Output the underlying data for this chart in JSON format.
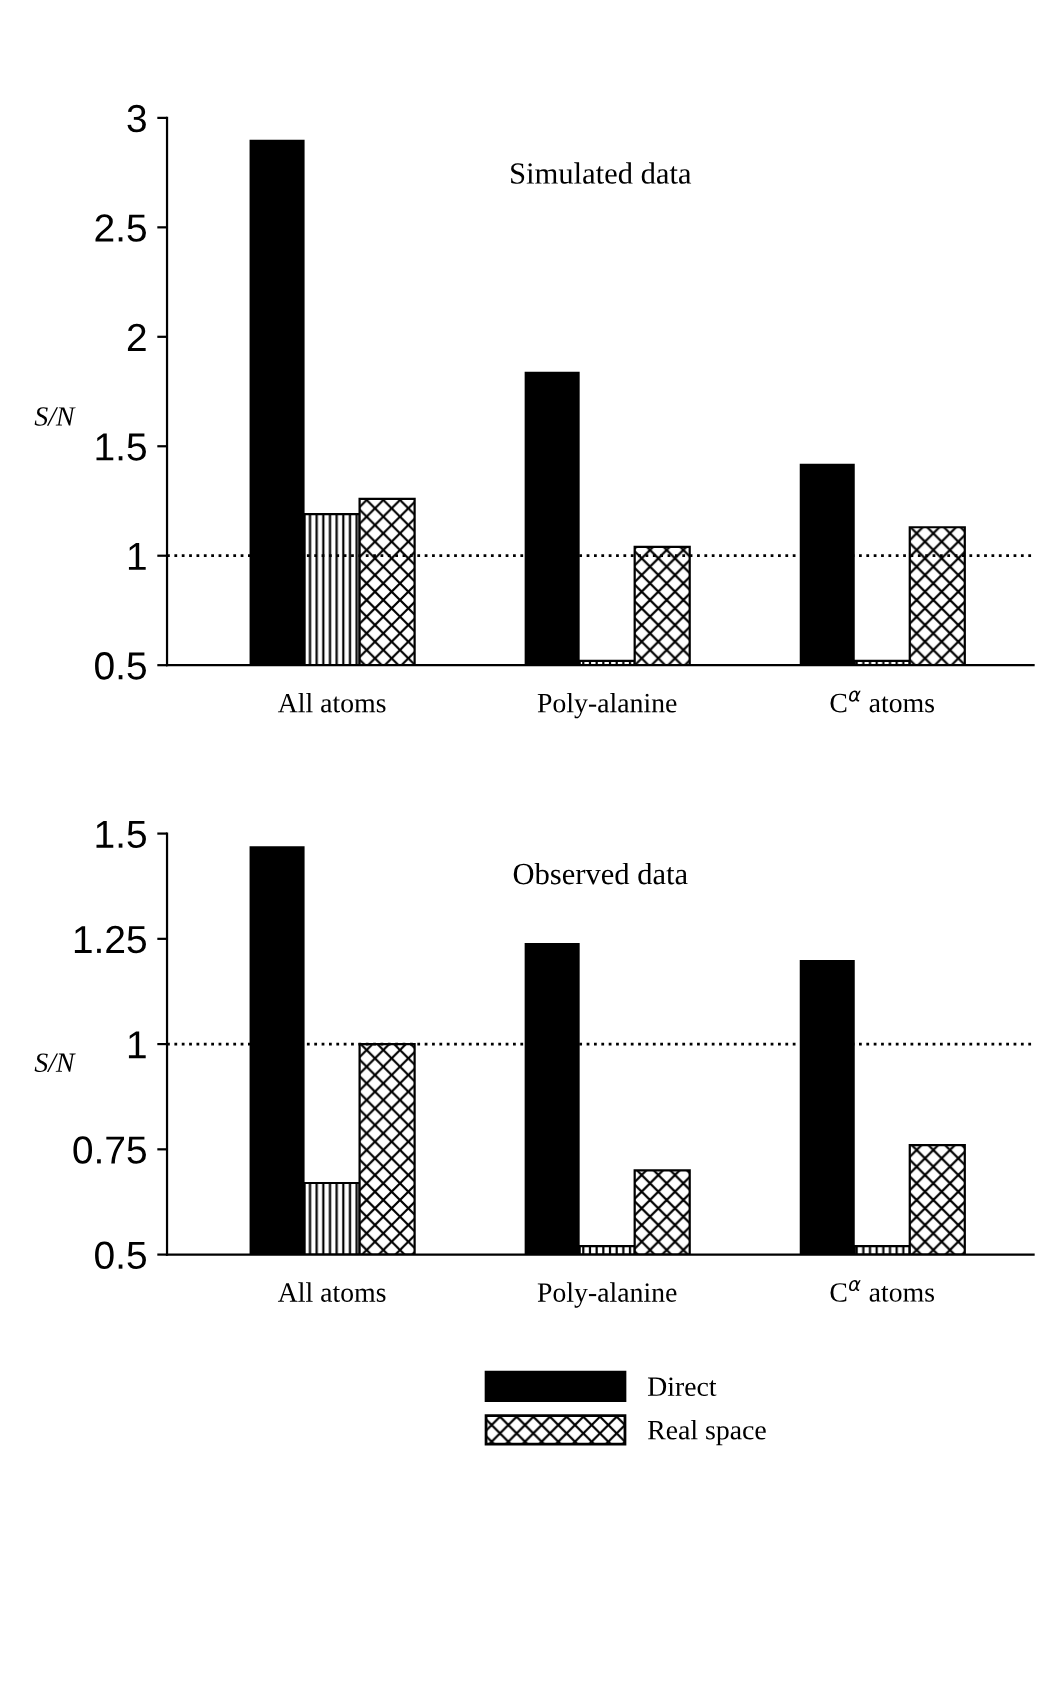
{
  "chart_data": [
    {
      "type": "bar",
      "title": "Simulated data",
      "ylabel": "S/N",
      "categories": [
        "All atoms",
        "Poly-alanine",
        "C$^{α}$ atoms"
      ],
      "series": [
        {
          "name": "Direct",
          "color": "#000000",
          "values": [
            2.9,
            1.84,
            1.42
          ]
        },
        {
          "color": "#000000",
          "values": [
            1.19,
            0.52,
            0.52
          ]
        },
        {
          "name": "Real space",
          "color": "#000000",
          "values": [
            1.26,
            1.04,
            1.13
          ]
        }
      ],
      "ylim": [
        0.5,
        3
      ],
      "yticks": [
        0.5,
        1,
        1.5,
        2,
        2.5,
        3
      ],
      "ref_lines": [
        {
          "axis": "y",
          "value": 1,
          "line_style": "dotted"
        }
      ],
      "grid": false,
      "legend": "bottom"
    },
    {
      "type": "bar",
      "title": "Observed data",
      "ylabel": "S/N",
      "categories": [
        "All atoms",
        "Poly-alanine",
        "C$^{α}$ atoms"
      ],
      "series": [
        {
          "color": "#000000",
          "values": [
            1.47,
            1.24,
            1.2
          ]
        },
        {
          "color": "#000000",
          "values": [
            0.67,
            0.52,
            0.52
          ]
        },
        {
          "color": "#000000",
          "values": [
            1.0,
            0.7,
            0.76
          ]
        }
      ],
      "ylim": [
        0.5,
        1.5
      ],
      "yticks": [
        0.5,
        0.75,
        1,
        1.25,
        1.5
      ],
      "ref_lines": [
        {
          "axis": "y",
          "value": 1,
          "line_style": "dotted"
        }
      ],
      "grid": false
    }
  ]
}
